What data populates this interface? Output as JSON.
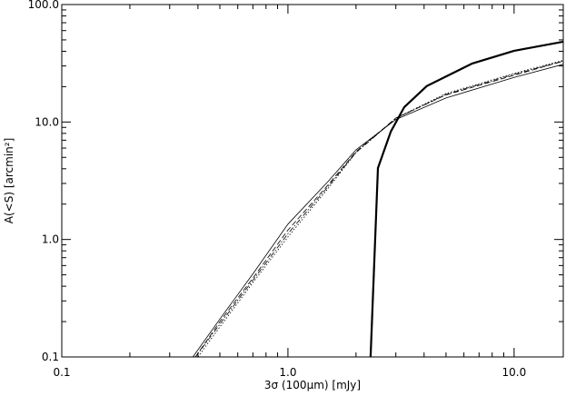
{
  "chart_data": {
    "type": "line",
    "xlabel": "3σ (100μm) [mJy]",
    "ylabel": "A(<S) [arcmin²]",
    "xscale": "log",
    "yscale": "log",
    "xlim": [
      0.1,
      16.5
    ],
    "ylim": [
      0.1,
      100
    ],
    "xticks": [
      0.1,
      {
        "value": 1,
        "label": "1.0"
      },
      {
        "value": 10,
        "label": "10.0"
      }
    ],
    "yticks": [
      0.1,
      {
        "value": 1,
        "label": "1.0"
      },
      {
        "value": 10,
        "label": "10.0"
      },
      {
        "value": 100,
        "label": "100.0"
      }
    ],
    "series": [
      {
        "color": "#000000",
        "style": "solid",
        "width": 2.2,
        "x": [
          2.32,
          2.5,
          2.85,
          3.27,
          4.11,
          6.53,
          10,
          16.5
        ],
        "values": [
          0.1,
          4.06,
          8.3,
          13.4,
          20.2,
          31.5,
          40.4,
          48.3
        ]
      },
      {
        "color": "#000000",
        "style": "solid",
        "width": 0.8,
        "x": [
          0.38,
          0.5,
          0.7,
          1.0,
          1.5,
          2.0,
          3.0,
          5.0,
          10,
          16.5
        ],
        "values": [
          0.1,
          0.21,
          0.51,
          1.35,
          3.1,
          5.8,
          10.5,
          16,
          24,
          31
        ]
      },
      {
        "color": "#000000",
        "style": "dashed",
        "width": 0.8,
        "x": [
          0.39,
          0.5,
          0.7,
          1.0,
          1.5,
          2.0,
          3.0,
          5.0,
          10,
          16.5
        ],
        "values": [
          0.1,
          0.2,
          0.47,
          1.2,
          2.9,
          5.6,
          10.8,
          17,
          25,
          33
        ]
      },
      {
        "color": "#000000",
        "style": "dotted",
        "width": 0.8,
        "x": [
          0.4,
          0.5,
          0.7,
          1.0,
          1.5,
          2.0,
          3.0,
          5.0,
          10,
          16.5
        ],
        "values": [
          0.1,
          0.18,
          0.43,
          1.05,
          2.7,
          5.5,
          10.8,
          17.5,
          26,
          33.5
        ]
      },
      {
        "color": "#000000",
        "style": "dashdot",
        "width": 0.8,
        "x": [
          0.39,
          0.5,
          0.7,
          1.0,
          1.5,
          2.0,
          3.0,
          5.0,
          10,
          16.5
        ],
        "values": [
          0.1,
          0.19,
          0.45,
          1.12,
          2.8,
          5.5,
          10.7,
          17.2,
          25.5,
          33
        ]
      }
    ]
  }
}
